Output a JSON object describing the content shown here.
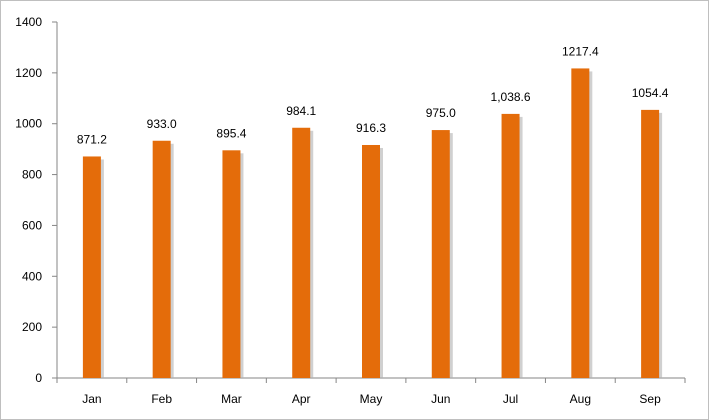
{
  "chart_data": {
    "type": "bar",
    "categories": [
      "Jan",
      "Feb",
      "Mar",
      "Apr",
      "May",
      "Jun",
      "Jul",
      "Aug",
      "Sep"
    ],
    "values": [
      871.2,
      933.0,
      895.4,
      984.1,
      916.3,
      975.0,
      1038.6,
      1217.4,
      1054.4
    ],
    "data_labels": [
      "871.2",
      "933.0",
      "895.4",
      "984.1",
      "916.3",
      "975.0",
      "1,038.6",
      "1217.4",
      "1054.4"
    ],
    "y_ticks": [
      0,
      200,
      400,
      600,
      800,
      1000,
      1200,
      1400
    ],
    "ylim": [
      0,
      1400
    ],
    "title": "",
    "xlabel": "",
    "ylabel": "",
    "grid": false,
    "legend": "none",
    "bar_color": "#e46c0a",
    "bar_shadow_color": "#b0b0b0"
  }
}
